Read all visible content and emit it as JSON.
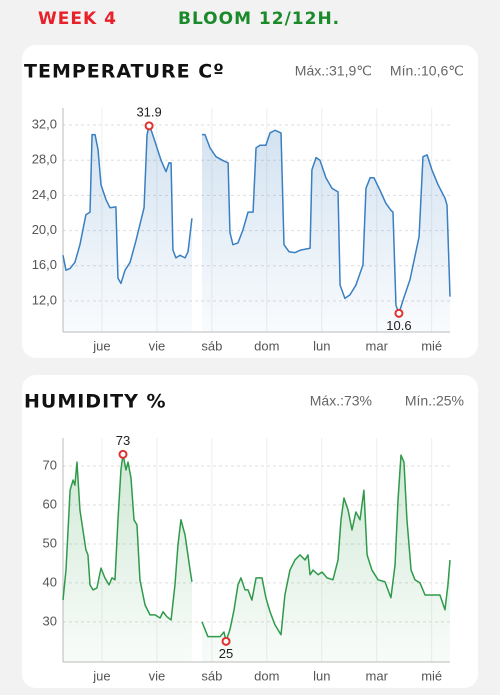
{
  "header": {
    "week": "WEEK 4",
    "phase": "BLOOM 12/12H."
  },
  "chart_data": [
    {
      "type": "line",
      "title": "TEMPERATURE Cº",
      "max_label": "Máx.:31,9℃",
      "min_label": "Mín.:10,6℃",
      "x": [
        0,
        1.3,
        3.1,
        5.2,
        7.4,
        10.0,
        11.8,
        12.7,
        14.0,
        15.3,
        16.6,
        18.8,
        20.5,
        23.1,
        24.0,
        25.3,
        27.1,
        29.3,
        31.9,
        35.4,
        36.7,
        37.6,
        38.0,
        40.2,
        42.8,
        45.0,
        46.3,
        47.2,
        48.0,
        49.3,
        51.1,
        53.3,
        54.6,
        56.3,
        58.0,
        60.7,
        62.0,
        64.2,
        66.8,
        70.3,
        72.1,
        72.9,
        74.2,
        76.4,
        78.6,
        80.8,
        83.0,
        84.3,
        86.0,
        88.6,
        90.4,
        92.6,
        95.2,
        96.5,
        98.7,
        101.3,
        103.9,
        107.9,
        108.7,
        110.5,
        112.2,
        114.8,
        117.5,
        120.1,
        121.0,
        123.1,
        125.3,
        127.9,
        131.0,
        132.3,
        134.1,
        135.8,
        138.4,
        141.0,
        143.2,
        144.1,
        145.4,
        146.7,
        148.5,
        151.5,
        155.5,
        157.2,
        159.0,
        161.1,
        163.8,
        166.8,
        167.7,
        169.0
      ],
      "series": [
        {
          "color": "#3a7fc0",
          "values": [
            17.2,
            15.5,
            15.7,
            16.4,
            18.4,
            21.8,
            22.1,
            30.9,
            30.9,
            29.2,
            25.2,
            23.5,
            22.6,
            22.7,
            14.6,
            14.0,
            15.5,
            16.4,
            18.9,
            22.6,
            30.9,
            31.9,
            31.8,
            30.1,
            28.0,
            26.7,
            27.7,
            27.7,
            17.8,
            16.9,
            17.2,
            16.9,
            17.6,
            21.4,
            null,
            30.9,
            30.9,
            29.4,
            28.4,
            27.9,
            27.7,
            19.8,
            18.4,
            18.6,
            20.1,
            22.1,
            22.1,
            29.4,
            29.7,
            29.7,
            31.1,
            31.4,
            31.1,
            18.4,
            17.6,
            17.5,
            17.8,
            18.0,
            26.9,
            28.3,
            28.0,
            26.0,
            24.8,
            24.4,
            13.8,
            12.3,
            12.7,
            13.8,
            16.1,
            24.8,
            26.0,
            26.0,
            24.6,
            23.1,
            22.3,
            22.1,
            11.5,
            10.6,
            12.1,
            14.4,
            19.3,
            28.4,
            28.6,
            26.9,
            25.2,
            23.7,
            22.9,
            12.5
          ]
        }
      ],
      "xlim": [
        0,
        169
      ],
      "xticks": [
        {
          "value": 17,
          "label": "jue"
        },
        {
          "value": 41,
          "label": "vie"
        },
        {
          "value": 65,
          "label": "sáb"
        },
        {
          "value": 89,
          "label": "dom"
        },
        {
          "value": 113,
          "label": "lun"
        },
        {
          "value": 137,
          "label": "mar"
        },
        {
          "value": 161,
          "label": "mié"
        }
      ],
      "ylim": [
        8.48,
        33.93
      ],
      "yticks": [
        {
          "value": 12,
          "label": "12,0"
        },
        {
          "value": 16,
          "label": "16,0"
        },
        {
          "value": 20,
          "label": "20,0"
        },
        {
          "value": 24,
          "label": "24,0"
        },
        {
          "value": 28,
          "label": "28,0"
        },
        {
          "value": 32,
          "label": "32,0"
        }
      ],
      "grid": true,
      "markers": [
        {
          "x": 37.6,
          "y": 31.9
        },
        {
          "x": 146.7,
          "y": 10.6
        }
      ]
    },
    {
      "type": "line",
      "title": "HUMIDITY %",
      "max_label": "Máx.:73%",
      "min_label": "Mín.:25%",
      "x": [
        0,
        1.3,
        3.1,
        4.4,
        5.2,
        6.1,
        7.4,
        8.7,
        10.0,
        10.9,
        11.8,
        13.1,
        14.8,
        16.6,
        18.3,
        20.1,
        21.4,
        22.7,
        24.0,
        25.3,
        26.2,
        27.5,
        28.4,
        29.7,
        31.0,
        32.3,
        33.6,
        35.8,
        38.0,
        40.2,
        42.4,
        43.7,
        45.4,
        47.2,
        48.9,
        50.2,
        51.5,
        53.3,
        55.5,
        56.3,
        58.0,
        60.7,
        63.3,
        65.1,
        68.6,
        70.3,
        71.2,
        72.9,
        74.7,
        76.4,
        77.7,
        79.5,
        80.8,
        82.5,
        84.3,
        86.9,
        88.6,
        90.4,
        92.6,
        95.2,
        96.9,
        99.1,
        101.3,
        103.5,
        105.7,
        107.0,
        107.9,
        109.2,
        111.4,
        113.1,
        115.3,
        117.9,
        120.1,
        121.4,
        122.7,
        124.5,
        126.2,
        127.9,
        129.7,
        131.4,
        132.8,
        134.9,
        137.6,
        140.6,
        143.2,
        145.0,
        146.3,
        147.6,
        148.9,
        150.2,
        152.0,
        153.7,
        155.9,
        158.1,
        160.3,
        164.6,
        166.8,
        168.1,
        169.0
      ],
      "series": [
        {
          "color": "#2f9a4a",
          "values": [
            35.6,
            43.3,
            63.8,
            66.4,
            65.1,
            71.0,
            58.7,
            53.6,
            48.5,
            47.2,
            39.5,
            38.2,
            38.7,
            43.8,
            41.3,
            39.5,
            41.3,
            40.8,
            56.2,
            69.0,
            73,
            69.0,
            71.0,
            66.9,
            56.2,
            54.9,
            40.8,
            34.4,
            31.8,
            31.8,
            31.0,
            32.6,
            31.3,
            30.5,
            39.5,
            49.7,
            56.2,
            52.3,
            43.3,
            40.3,
            null,
            30,
            26.2,
            26.2,
            26.2,
            27.4,
            25,
            28.0,
            33.1,
            39.5,
            41.3,
            38.2,
            38.2,
            35.6,
            41.3,
            41.3,
            36.2,
            32.6,
            29.2,
            26.7,
            36.9,
            43.3,
            45.9,
            47.2,
            45.9,
            47.2,
            42.1,
            43.3,
            42.1,
            42.8,
            41.3,
            40.8,
            45.9,
            56.2,
            61.8,
            58.7,
            53.6,
            58.2,
            56.2,
            63.8,
            47.2,
            43.3,
            40.8,
            40.3,
            36.2,
            44.6,
            61.3,
            72.8,
            71.0,
            56.2,
            43.3,
            40.8,
            40.0,
            36.9,
            36.9,
            36.9,
            33.1,
            39.5,
            45.9
          ]
        }
      ],
      "xlim": [
        0,
        169
      ],
      "xticks": [
        {
          "value": 17,
          "label": "jue"
        },
        {
          "value": 41,
          "label": "vie"
        },
        {
          "value": 65,
          "label": "sáb"
        },
        {
          "value": 89,
          "label": "dom"
        },
        {
          "value": 113,
          "label": "lun"
        },
        {
          "value": 137,
          "label": "mar"
        },
        {
          "value": 161,
          "label": "mié"
        }
      ],
      "ylim": [
        19.7,
        77.2
      ],
      "yticks": [
        30,
        40,
        50,
        60,
        70
      ],
      "grid": true,
      "markers": [
        {
          "x": 26.2,
          "y": 73
        },
        {
          "x": 71.2,
          "y": 25
        }
      ]
    }
  ]
}
